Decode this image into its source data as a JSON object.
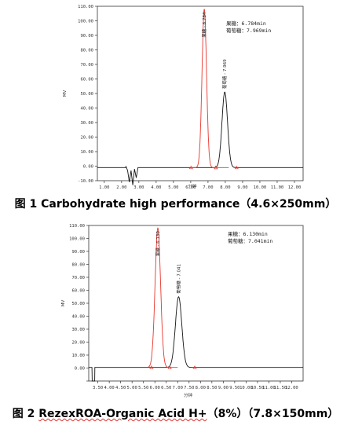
{
  "charts": [
    {
      "caption_prefix": "图 1 ",
      "caption_main": "Carbohydrate high performance（4.6×250mm）",
      "caption_squiggle": "",
      "caption_tail": ""
    },
    {
      "caption_prefix": "图 2 ",
      "caption_main": "",
      "caption_squiggle": "RezexROA-Organic Acid H+",
      "caption_tail": "（8%）（7.8×150mm）"
    }
  ],
  "chart_data": [
    {
      "type": "line",
      "title": "",
      "xlabel": "分钟",
      "ylabel": "MV",
      "xlim": [
        0.6,
        12.5
      ],
      "ylim": [
        -10,
        110
      ],
      "x_ticks": [
        1.0,
        2.0,
        3.0,
        4.0,
        5.0,
        6.0,
        7.0,
        8.0,
        9.0,
        10.0,
        11.0,
        12.0
      ],
      "x_tick_labels": [
        "1.00",
        "2.00",
        "3.00",
        "4.00",
        "5.00",
        "6.00",
        "7.00",
        "8.00",
        "9.00",
        "10.00",
        "11.00",
        "12.00"
      ],
      "y_ticks": [
        -10,
        0,
        10,
        20,
        30,
        40,
        50,
        60,
        70,
        80,
        90,
        100,
        110
      ],
      "y_tick_labels": [
        "-10.00",
        "0.00",
        "10.00",
        "20.00",
        "30.00",
        "40.00",
        "50.00",
        "60.00",
        "70.00",
        "80.00",
        "90.00",
        "100.00",
        "110.00"
      ],
      "grid": false,
      "series": [
        {
          "name": "果糖",
          "color": "#e8362d",
          "retention_time": 6.784,
          "peak_height": 108,
          "peak_width": 0.13,
          "range": [
            6.0,
            8.2
          ]
        },
        {
          "name": "葡萄糖",
          "color": "#111111",
          "retention_time": 7.969,
          "peak_height": 51,
          "peak_width": 0.16,
          "range": [
            0.6,
            12.5
          ]
        }
      ],
      "baseline": -1.0,
      "noise": {
        "center": 2.55,
        "values": [
          [
            2.25,
            0
          ],
          [
            2.35,
            -3
          ],
          [
            2.45,
            -11
          ],
          [
            2.55,
            -3
          ],
          [
            2.65,
            -13
          ],
          [
            2.75,
            -2
          ],
          [
            2.85,
            -8
          ],
          [
            2.95,
            -1
          ]
        ]
      },
      "peak_labels": [
        "果糖 - 6.784",
        "葡萄糖 - 7.969"
      ],
      "integration_markers_red": [
        6.02,
        7.45
      ],
      "integration_markers_black": [
        7.45,
        8.65
      ],
      "annotation_lines": [
        "果糖：6.784min",
        "葡萄糖：7.969min"
      ]
    },
    {
      "type": "line",
      "title": "",
      "xlabel": "分钟",
      "ylabel": "MV",
      "xlim": [
        3.1,
        12.5
      ],
      "ylim": [
        -10,
        110
      ],
      "x_ticks": [
        3.5,
        4.0,
        4.5,
        5.0,
        5.5,
        6.0,
        6.5,
        7.0,
        7.5,
        8.0,
        8.5,
        9.0,
        9.5,
        10.0,
        10.5,
        11.0,
        11.5,
        12.0
      ],
      "x_tick_labels": [
        "3.50",
        "4.00",
        "4.50",
        "5.00",
        "5.50",
        "6.00",
        "6.50",
        "7.00",
        "7.50",
        "8.00",
        "8.50",
        "9.00",
        "9.50",
        "10.00",
        "10.50",
        "11.00",
        "11.50",
        "12.00"
      ],
      "y_ticks": [
        -10,
        0,
        10,
        20,
        30,
        40,
        50,
        60,
        70,
        80,
        90,
        100,
        110
      ],
      "y_tick_labels": [
        "",
        "0.00",
        "10.00",
        "20.00",
        "30.00",
        "40.00",
        "50.00",
        "60.00",
        "70.00",
        "80.00",
        "90.00",
        "100.00",
        "110.00"
      ],
      "grid": false,
      "series": [
        {
          "name": "果糖",
          "color": "#e8362d",
          "retention_time": 6.13,
          "peak_height": 108,
          "peak_width": 0.12,
          "range": [
            5.7,
            7.0
          ]
        },
        {
          "name": "葡萄糖",
          "color": "#111111",
          "retention_time": 7.041,
          "peak_height": 55,
          "peak_width": 0.14,
          "range": [
            3.1,
            12.5
          ]
        }
      ],
      "baseline": 0.5,
      "initial_drop": {
        "x": 3.3,
        "min": -10
      },
      "peak_labels": [
        "果糖 - 6.130",
        "葡萄糖 - 7.041"
      ],
      "integration_markers_red": [
        5.85,
        6.65
      ],
      "integration_markers_black": [
        6.65,
        7.75
      ],
      "annotation_lines": [
        "果糖：6.130min",
        "葡萄糖：7.041min"
      ]
    }
  ]
}
